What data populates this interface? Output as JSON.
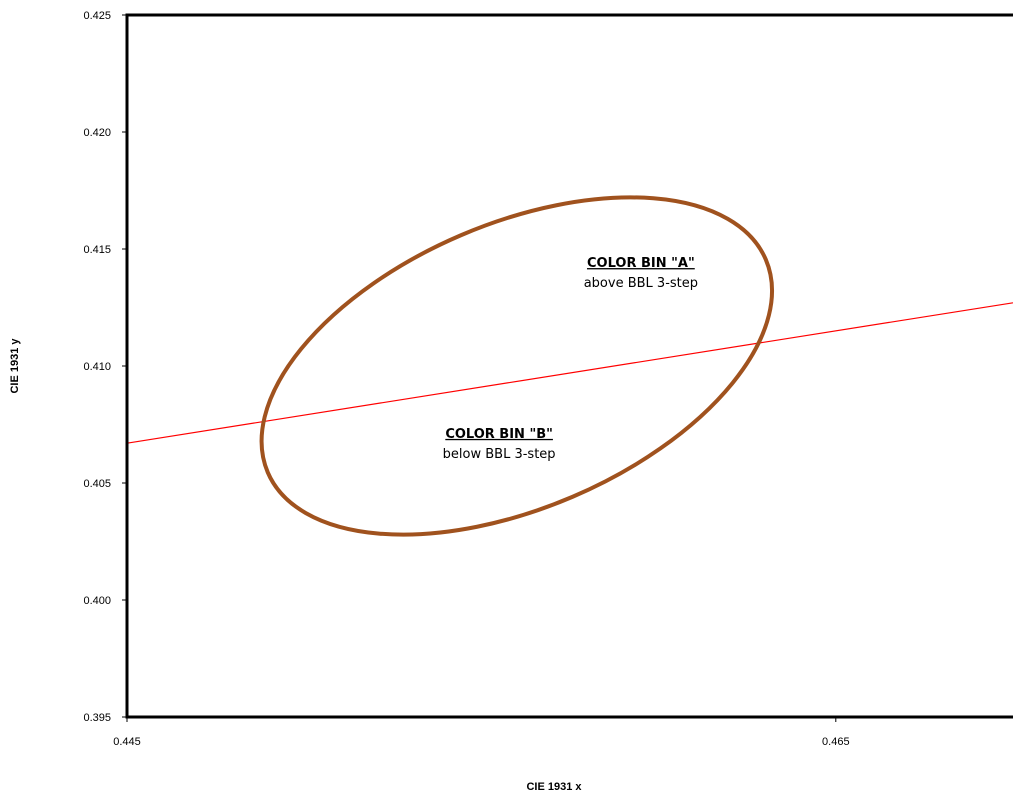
{
  "chart_data": {
    "type": "scatter",
    "xlabel": "CIE 1931 x",
    "ylabel": "CIE 1931 y",
    "xlim": [
      0.445,
      0.47
    ],
    "ylim": [
      0.395,
      0.425
    ],
    "xticks": [
      {
        "value": 0.445,
        "label": "0.445"
      },
      {
        "value": 0.465,
        "label": "0.465"
      }
    ],
    "yticks": [
      {
        "value": 0.395,
        "label": "0.395"
      },
      {
        "value": 0.4,
        "label": "0.400"
      },
      {
        "value": 0.405,
        "label": "0.405"
      },
      {
        "value": 0.41,
        "label": "0.410"
      },
      {
        "value": 0.415,
        "label": "0.415"
      },
      {
        "value": 0.42,
        "label": "0.420"
      },
      {
        "value": 0.425,
        "label": "0.425"
      }
    ],
    "grid": false,
    "series": [
      {
        "type": "line",
        "color": "#ff0000",
        "x": [
          0.445,
          0.47
        ],
        "y": [
          0.4067,
          0.4127
        ]
      },
      {
        "type": "ellipse",
        "color": "#a0521e",
        "center": [
          0.456,
          0.41
        ],
        "points": [
          [
            0.454,
            0.403
          ],
          [
            0.463,
            0.4167
          ],
          [
            0.4595,
            0.417
          ],
          [
            0.4509,
            0.406
          ],
          [
            0.452,
            0.4088
          ],
          [
            0.4635,
            0.4113
          ]
        ]
      }
    ],
    "annotations": [
      {
        "title": "COLOR BIN \"A\"",
        "text": "above BBL 3-step",
        "x": 0.4595,
        "y": 0.4138
      },
      {
        "title": "COLOR BIN \"B\"",
        "text": "below BBL 3-step",
        "x": 0.4555,
        "y": 0.4065
      }
    ]
  }
}
